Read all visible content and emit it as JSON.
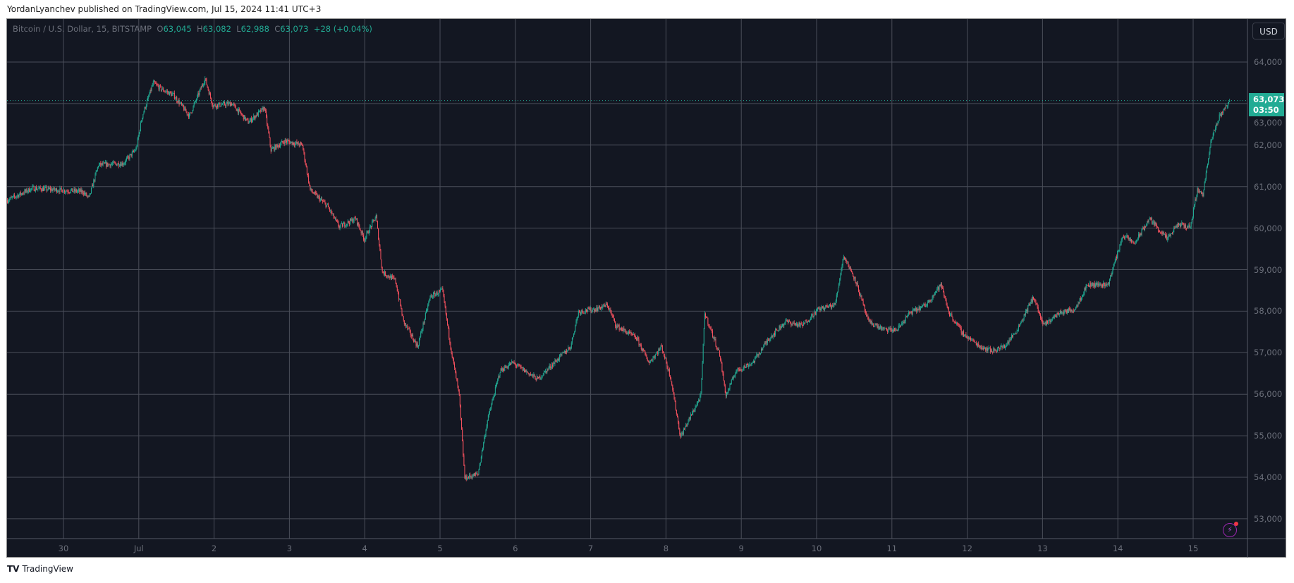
{
  "header": {
    "published": "YordanLyanchev published on TradingView.com, Jul 15, 2024 11:41 UTC+3"
  },
  "legend": {
    "symbol": "Bitcoin / U.S. Dollar, 15, BITSTAMP",
    "o_label": "O",
    "o": "63,045",
    "h_label": "H",
    "h": "63,082",
    "l_label": "L",
    "l": "62,988",
    "c_label": "C",
    "c": "63,073",
    "change": "+28 (+0.04%)"
  },
  "currency_button": "USD",
  "last_price": {
    "value": "63,073",
    "countdown": "03:50"
  },
  "footer": {
    "logo": "TV",
    "brand": "TradingView"
  },
  "colors": {
    "background": "#131722",
    "up": "#22ab94",
    "down": "#f7525f",
    "grid": "#4a4e59",
    "last_price": "#22ab94"
  },
  "icons": [
    "lightning-alert-icon",
    "tradingview-logo-icon"
  ],
  "chart_data": {
    "type": "candlestick",
    "interval": "15",
    "grid": true,
    "y_axis": {
      "ticks": [
        "53,000",
        "54,000",
        "55,000",
        "56,000",
        "57,000",
        "58,000",
        "59,000",
        "60,000",
        "61,000",
        "62,000",
        "63,000",
        "64,000"
      ],
      "range": [
        52500,
        64700
      ],
      "position": "right"
    },
    "x_axis": {
      "ticks": [
        "30",
        "Jul",
        "2",
        "3",
        "4",
        "5",
        "6",
        "7",
        "8",
        "9",
        "10",
        "11",
        "12",
        "13",
        "14",
        "15"
      ],
      "tick_dates": [
        "2024-06-30",
        "2024-07-01",
        "2024-07-02",
        "2024-07-03",
        "2024-07-04",
        "2024-07-05",
        "2024-07-06",
        "2024-07-07",
        "2024-07-08",
        "2024-07-09",
        "2024-07-10",
        "2024-07-11",
        "2024-07-12",
        "2024-07-13",
        "2024-07-14",
        "2024-07-15"
      ]
    },
    "approx_close_path": [
      [
        "2024-06-29T06:00",
        60670
      ],
      [
        "2024-06-29T14:00",
        60960
      ],
      [
        "2024-06-30T06:00",
        60880
      ],
      [
        "2024-06-30T08:00",
        60720
      ],
      [
        "2024-06-30T11:00",
        61520
      ],
      [
        "2024-06-30T19:00",
        61560
      ],
      [
        "2024-06-30T23:00",
        61900
      ],
      [
        "2024-07-01T01:00",
        62700
      ],
      [
        "2024-07-01T04:30",
        63500
      ],
      [
        "2024-07-01T07:00",
        63350
      ],
      [
        "2024-07-01T11:00",
        63200
      ],
      [
        "2024-07-01T16:00",
        62700
      ],
      [
        "2024-07-01T21:00",
        63600
      ],
      [
        "2024-07-01T23:30",
        62950
      ],
      [
        "2024-07-02T05:30",
        63000
      ],
      [
        "2024-07-02T10:45",
        62550
      ],
      [
        "2024-07-02T16:00",
        62900
      ],
      [
        "2024-07-02T18:00",
        61880
      ],
      [
        "2024-07-02T22:30",
        62100
      ],
      [
        "2024-07-03T04:00",
        62000
      ],
      [
        "2024-07-03T06:30",
        60920
      ],
      [
        "2024-07-03T12:00",
        60530
      ],
      [
        "2024-07-03T15:45",
        60030
      ],
      [
        "2024-07-03T21:00",
        60230
      ],
      [
        "2024-07-03T23:45",
        59730
      ],
      [
        "2024-07-04T03:30",
        60290
      ],
      [
        "2024-07-04T05:30",
        58940
      ],
      [
        "2024-07-04T09:40",
        58740
      ],
      [
        "2024-07-04T12:15",
        57750
      ],
      [
        "2024-07-04T16:45",
        57150
      ],
      [
        "2024-07-04T20:45",
        58350
      ],
      [
        "2024-07-05T00:40",
        58500
      ],
      [
        "2024-07-05T03:15",
        57150
      ],
      [
        "2024-07-05T06:00",
        55960
      ],
      [
        "2024-07-05T07:45",
        53980
      ],
      [
        "2024-07-05T12:00",
        54080
      ],
      [
        "2024-07-05T15:00",
        55370
      ],
      [
        "2024-07-05T19:00",
        56560
      ],
      [
        "2024-07-05T23:00",
        56760
      ],
      [
        "2024-07-06T07:00",
        56360
      ],
      [
        "2024-07-06T12:15",
        56760
      ],
      [
        "2024-07-06T17:30",
        57150
      ],
      [
        "2024-07-06T20:00",
        57990
      ],
      [
        "2024-07-07T01:30",
        58050
      ],
      [
        "2024-07-07T05:15",
        58150
      ],
      [
        "2024-07-07T08:00",
        57650
      ],
      [
        "2024-07-07T14:30",
        57350
      ],
      [
        "2024-07-07T18:30",
        56760
      ],
      [
        "2024-07-07T22:30",
        57150
      ],
      [
        "2024-07-08T01:30",
        56360
      ],
      [
        "2024-07-08T04:30",
        54970
      ],
      [
        "2024-07-08T07:45",
        55470
      ],
      [
        "2024-07-08T11:00",
        55960
      ],
      [
        "2024-07-08T12:15",
        57950
      ],
      [
        "2024-07-08T17:00",
        56960
      ],
      [
        "2024-07-08T19:00",
        55960
      ],
      [
        "2024-07-08T22:10",
        56560
      ],
      [
        "2024-07-09T03:30",
        56760
      ],
      [
        "2024-07-09T08:45",
        57350
      ],
      [
        "2024-07-09T14:00",
        57750
      ],
      [
        "2024-07-09T19:15",
        57650
      ],
      [
        "2024-07-10T00:30",
        58050
      ],
      [
        "2024-07-10T05:45",
        58150
      ],
      [
        "2024-07-10T08:30",
        59340
      ],
      [
        "2024-07-10T12:20",
        58740
      ],
      [
        "2024-07-10T16:20",
        57750
      ],
      [
        "2024-07-10T21:30",
        57550
      ],
      [
        "2024-07-11T01:30",
        57550
      ],
      [
        "2024-07-11T05:30",
        57950
      ],
      [
        "2024-07-11T10:45",
        58150
      ],
      [
        "2024-07-11T15:30",
        58640
      ],
      [
        "2024-07-11T18:10",
        57950
      ],
      [
        "2024-07-11T22:40",
        57450
      ],
      [
        "2024-07-12T04:00",
        57150
      ],
      [
        "2024-07-12T07:50",
        57050
      ],
      [
        "2024-07-12T11:50",
        57150
      ],
      [
        "2024-07-12T15:45",
        57550
      ],
      [
        "2024-07-12T21:00",
        58350
      ],
      [
        "2024-07-13T00:10",
        57650
      ],
      [
        "2024-07-13T05:00",
        57950
      ],
      [
        "2024-07-13T10:10",
        58050
      ],
      [
        "2024-07-13T14:10",
        58640
      ],
      [
        "2024-07-13T20:45",
        58640
      ],
      [
        "2024-07-14T01:30",
        59830
      ],
      [
        "2024-07-14T05:10",
        59630
      ],
      [
        "2024-07-14T10:00",
        60230
      ],
      [
        "2024-07-14T15:40",
        59730
      ],
      [
        "2024-07-14T19:00",
        60090
      ],
      [
        "2024-07-14T23:00",
        60030
      ],
      [
        "2024-07-15T01:10",
        60920
      ],
      [
        "2024-07-15T03:00",
        60830
      ],
      [
        "2024-07-15T05:40",
        62120
      ],
      [
        "2024-07-15T08:20",
        62710
      ],
      [
        "2024-07-15T11:40",
        63073
      ]
    ],
    "last": {
      "open": 63045,
      "high": 63082,
      "low": 62988,
      "close": 63073
    }
  }
}
